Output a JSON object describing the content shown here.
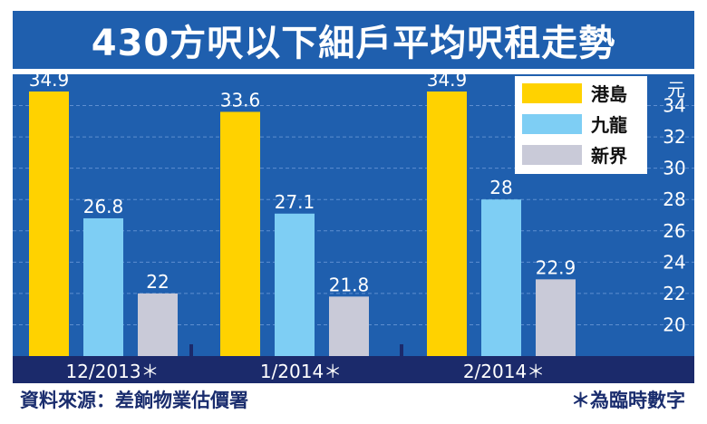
{
  "title": "430方呎以下細戶平均呎租走勢",
  "chart_data": {
    "type": "bar",
    "title": "430方呎以下細戶平均呎租走勢",
    "categories": [
      "12/2013＊",
      "1/2014＊",
      "2/2014＊"
    ],
    "series": [
      {
        "name": "港島",
        "color": "#ffd200",
        "values": [
          34.9,
          33.6,
          34.9
        ],
        "labels": [
          "34.9",
          "33.6",
          "34.9"
        ]
      },
      {
        "name": "九龍",
        "color": "#7ecef4",
        "values": [
          26.8,
          27.1,
          28
        ],
        "labels": [
          "26.8",
          "27.1",
          "28"
        ]
      },
      {
        "name": "新界",
        "color": "#c9cad8",
        "values": [
          22,
          21.8,
          22.9
        ],
        "labels": [
          "22",
          "21.8",
          "22.9"
        ]
      }
    ],
    "ylim": [
      18,
      36
    ],
    "yunit": "元",
    "yticks": [
      "34",
      "32",
      "30",
      "28",
      "26",
      "24",
      "22",
      "20"
    ],
    "legend": "top-right",
    "grid": true
  },
  "footer": {
    "source": "資料來源：差餉物業估價署",
    "note": "＊為臨時數字"
  },
  "colors": {
    "title_bg": "#1f5fae",
    "plot_bg": "#1f5fae",
    "axis_band": "#1b2a6b",
    "footer_text": "#1a2d6e"
  }
}
